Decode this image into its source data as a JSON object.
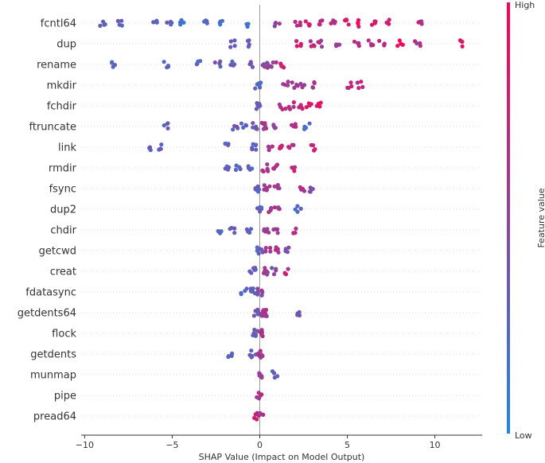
{
  "chart_data": {
    "type": "scatter",
    "subtype": "shap-beeswarm",
    "xlabel": "SHAP Value (Impact on Model Output)",
    "xlim": [
      -10.2,
      12.7
    ],
    "xticks": [
      -10,
      -5,
      0,
      5,
      10
    ],
    "xtick_labels": [
      "−10",
      "−5",
      "0",
      "5",
      "10"
    ],
    "grid": false,
    "legend": "colorbar-right",
    "colorbar": {
      "label": "Feature value",
      "high_label": "High",
      "low_label": "Low",
      "low_color": "#1E88E5",
      "high_color": "#FF0051"
    },
    "features": [
      {
        "name": "fcntl64",
        "clusters": [
          [
            -9,
            0.3
          ],
          [
            -8,
            0.3
          ],
          [
            -6,
            0.3
          ],
          [
            -5.2,
            0.3
          ],
          [
            -4.5,
            0.2
          ],
          [
            -3,
            0.2
          ],
          [
            -2.3,
            0.2
          ],
          [
            -0.8,
            0.2
          ],
          [
            1,
            0.5
          ],
          [
            2.2,
            0.65
          ],
          [
            2.8,
            0.75
          ],
          [
            3.5,
            0.7
          ],
          [
            4.2,
            0.6
          ],
          [
            5,
            0.8
          ],
          [
            5.7,
            0.85
          ],
          [
            6.5,
            0.85
          ],
          [
            7.3,
            0.8
          ],
          [
            9.1,
            0.65
          ]
        ]
      },
      {
        "name": "dup",
        "clusters": [
          [
            -1.6,
            0.3
          ],
          [
            -0.7,
            0.3
          ],
          [
            2.2,
            0.8
          ],
          [
            3,
            0.7
          ],
          [
            3.5,
            0.6
          ],
          [
            4.5,
            0.55
          ],
          [
            5.5,
            0.65
          ],
          [
            6.3,
            0.7
          ],
          [
            7,
            0.6
          ],
          [
            8,
            0.9
          ],
          [
            9,
            0.6
          ],
          [
            11.6,
            0.85
          ]
        ]
      },
      {
        "name": "rename",
        "clusters": [
          [
            -8.3,
            0.3
          ],
          [
            -5.3,
            0.3
          ],
          [
            -3.5,
            0.3
          ],
          [
            -2.4,
            0.3
          ],
          [
            -1.5,
            0.3
          ],
          [
            -0.5,
            0.35
          ],
          [
            0.3,
            0.5
          ],
          [
            0.8,
            0.55
          ],
          [
            1.3,
            0.8
          ]
        ]
      },
      {
        "name": "mkdir",
        "clusters": [
          [
            -0.1,
            0.3
          ],
          [
            1.5,
            0.6
          ],
          [
            2,
            0.6
          ],
          [
            2.5,
            0.55
          ],
          [
            3,
            0.6
          ],
          [
            5.1,
            0.7
          ],
          [
            5.7,
            0.7
          ]
        ]
      },
      {
        "name": "fchdir",
        "clusters": [
          [
            -0.1,
            0.3
          ],
          [
            1.3,
            0.6
          ],
          [
            1.8,
            0.65
          ],
          [
            2.3,
            0.7
          ],
          [
            2.8,
            0.75
          ],
          [
            3.4,
            0.85
          ]
        ]
      },
      {
        "name": "ftruncate",
        "clusters": [
          [
            -5.4,
            0.3
          ],
          [
            -1.4,
            0.3
          ],
          [
            -0.9,
            0.3
          ],
          [
            -0.3,
            0.3
          ],
          [
            0.3,
            0.6
          ],
          [
            0.9,
            0.5
          ],
          [
            1.9,
            0.65
          ],
          [
            2.7,
            0.3
          ]
        ]
      },
      {
        "name": "link",
        "clusters": [
          [
            -6.3,
            0.3
          ],
          [
            -5.7,
            0.3
          ],
          [
            -1.8,
            0.3
          ],
          [
            -0.3,
            0.3
          ],
          [
            0.6,
            0.6
          ],
          [
            1.3,
            0.7
          ],
          [
            1.8,
            0.7
          ],
          [
            3,
            0.7
          ]
        ]
      },
      {
        "name": "rmdir",
        "clusters": [
          [
            -1.8,
            0.3
          ],
          [
            -1.2,
            0.3
          ],
          [
            -0.5,
            0.3
          ],
          [
            0.3,
            0.6
          ],
          [
            0.9,
            0.6
          ],
          [
            1.9,
            0.7
          ]
        ]
      },
      {
        "name": "fsync",
        "clusters": [
          [
            -0.2,
            0.3
          ],
          [
            0.4,
            0.55
          ],
          [
            1,
            0.6
          ],
          [
            2.4,
            0.6
          ],
          [
            3,
            0.4
          ]
        ]
      },
      {
        "name": "dup2",
        "clusters": [
          [
            0,
            0.3
          ],
          [
            0.5,
            0.6
          ],
          [
            1,
            0.6
          ],
          [
            2.2,
            0.3
          ]
        ]
      },
      {
        "name": "chdir",
        "clusters": [
          [
            -2.3,
            0.3
          ],
          [
            -1.6,
            0.3
          ],
          [
            -0.6,
            0.3
          ],
          [
            0.4,
            0.55
          ],
          [
            0.9,
            0.6
          ],
          [
            2,
            0.7
          ]
        ]
      },
      {
        "name": "getcwd",
        "clusters": [
          [
            0,
            0.3
          ],
          [
            0.5,
            0.6
          ],
          [
            1,
            0.6
          ],
          [
            1.6,
            0.4
          ]
        ]
      },
      {
        "name": "creat",
        "clusters": [
          [
            -0.4,
            0.3
          ],
          [
            0.3,
            0.55
          ],
          [
            0.8,
            0.45
          ],
          [
            1.6,
            0.7
          ]
        ]
      },
      {
        "name": "fdatasync",
        "clusters": [
          [
            -0.9,
            0.3
          ],
          [
            -0.4,
            0.3
          ],
          [
            0,
            0.45
          ]
        ]
      },
      {
        "name": "getdents64",
        "clusters": [
          [
            -0.2,
            0.3
          ],
          [
            0.2,
            0.6
          ],
          [
            0.4,
            0.6
          ],
          [
            2.3,
            0.4
          ]
        ]
      },
      {
        "name": "flock",
        "clusters": [
          [
            -0.3,
            0.3
          ],
          [
            0.05,
            0.6
          ]
        ]
      },
      {
        "name": "getdents",
        "clusters": [
          [
            -1.7,
            0.3
          ],
          [
            -0.4,
            0.3
          ],
          [
            0.05,
            0.6
          ]
        ]
      },
      {
        "name": "munmap",
        "clusters": [
          [
            0,
            0.5
          ],
          [
            0.9,
            0.3
          ]
        ]
      },
      {
        "name": "pipe",
        "clusters": [
          [
            0,
            0.6
          ]
        ]
      },
      {
        "name": "pread64",
        "clusters": [
          [
            -0.2,
            0.8
          ],
          [
            0.05,
            0.6
          ]
        ]
      }
    ]
  }
}
